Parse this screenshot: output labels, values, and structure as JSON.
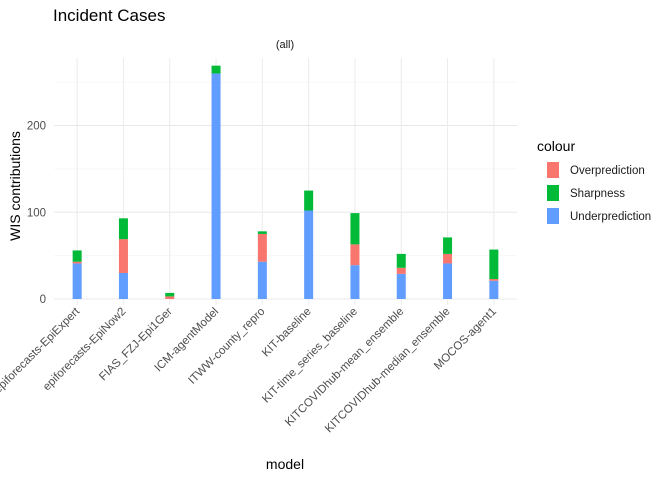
{
  "chart_data": {
    "type": "bar",
    "stacked": true,
    "title": "Incident Cases",
    "facet_label": "(all)",
    "xlabel": "model",
    "ylabel": "WIS contributions",
    "ylim": [
      0,
      270
    ],
    "yticks": [
      0,
      100,
      200
    ],
    "grid": true,
    "legend_title": "colour",
    "legend_position": "right",
    "categories": [
      "epiforecasts-EpiExpert",
      "epiforecasts-EpiNow2",
      "FIAS_FZJ-Epi1Ger",
      "ICM-agentModel",
      "ITWW-county_repro",
      "KIT-baseline",
      "KIT-time_series_baseline",
      "KITCOVIDhub-mean_ensemble",
      "KITCOVIDhub-median_ensemble",
      "MOCOS-agent1"
    ],
    "series": [
      {
        "name": "Underprediction",
        "color": "#619CFF",
        "values": [
          41,
          30,
          0,
          260,
          43,
          102,
          39,
          29,
          41,
          21
        ]
      },
      {
        "name": "Overprediction",
        "color": "#F8766D",
        "values": [
          2,
          39,
          3,
          0,
          32,
          0,
          24,
          7,
          11,
          2
        ]
      },
      {
        "name": "Sharpness",
        "color": "#00BA38",
        "values": [
          13,
          24,
          4,
          9,
          3,
          23,
          36,
          16,
          19,
          34
        ]
      }
    ],
    "legend_order": [
      "Overprediction",
      "Sharpness",
      "Underprediction"
    ]
  }
}
